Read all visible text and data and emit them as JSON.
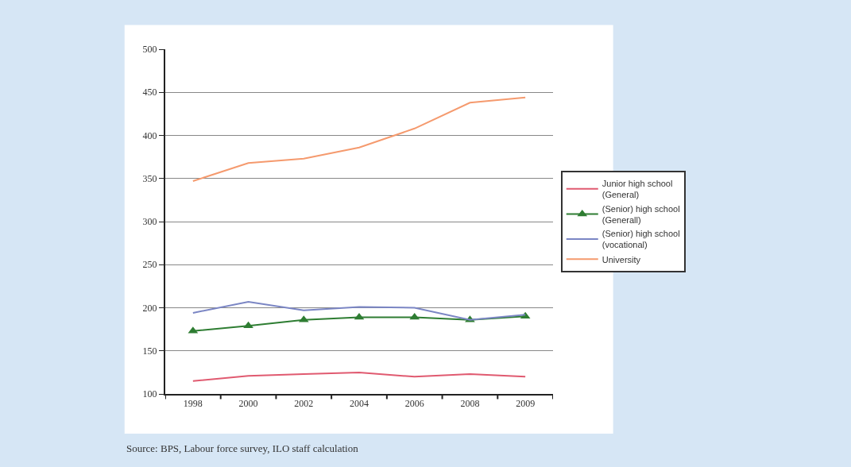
{
  "chart_data": {
    "type": "line",
    "categories": [
      "1998",
      "2000",
      "2002",
      "2004",
      "2006",
      "2008",
      "2009"
    ],
    "series": [
      {
        "name": "Junior high school (General)",
        "color": "#e05a70",
        "values": [
          115,
          121,
          123,
          125,
          120,
          123,
          120
        ]
      },
      {
        "name": "(Senior) high school (Generall)",
        "color": "#2e7d32",
        "values": [
          173,
          179,
          186,
          189,
          189,
          186,
          190
        ],
        "marker": "triangle"
      },
      {
        "name": "(Senior) high school (vocational)",
        "color": "#7b86c4",
        "values": [
          194,
          207,
          197,
          201,
          200,
          186,
          192
        ]
      },
      {
        "name": "University",
        "color": "#f59a6e",
        "values": [
          347,
          368,
          373,
          386,
          408,
          438,
          444
        ]
      }
    ],
    "ylim": [
      100,
      500
    ],
    "yticks": [
      100,
      150,
      200,
      250,
      300,
      350,
      400,
      450,
      500
    ],
    "grid": "y",
    "legend": "right",
    "marker": "none",
    "line_style": "solid",
    "annotations": [
      "Source: BPS, Labour force survey, ILO staff calculation"
    ]
  }
}
